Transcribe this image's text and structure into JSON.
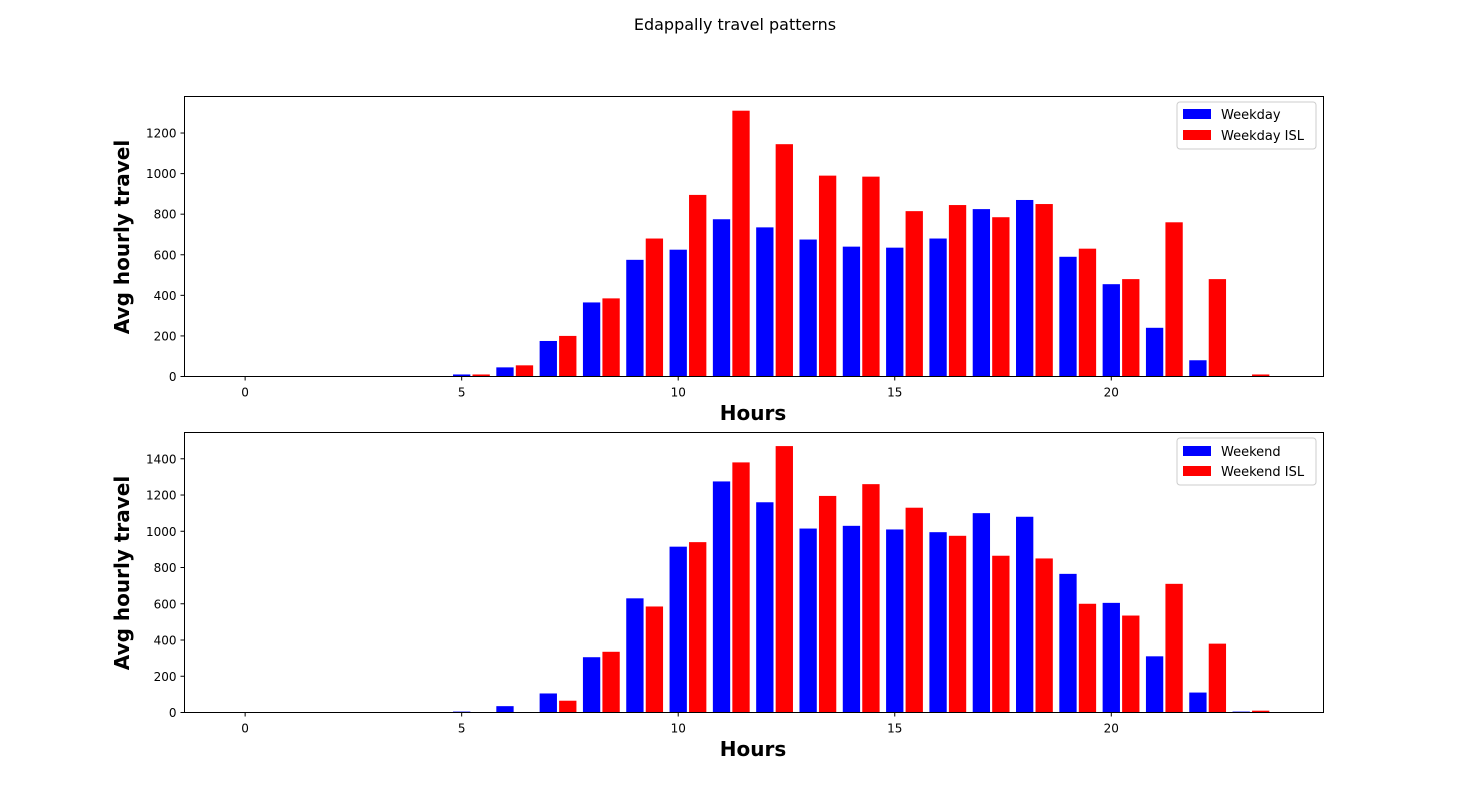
{
  "figure": {
    "title": "Edappally travel patterns"
  },
  "chart_data": [
    {
      "type": "bar",
      "xlabel": "Hours",
      "ylabel": "Avg hourly travel",
      "xlim": [
        -1.4,
        24.9
      ],
      "ylim": [
        0,
        1380
      ],
      "xticks": [
        0,
        5,
        10,
        15,
        20
      ],
      "yticks": [
        0,
        200,
        400,
        600,
        800,
        1000,
        1200
      ],
      "legend_position": "top-right",
      "x": [
        0,
        1,
        2,
        3,
        4,
        5,
        6,
        7,
        8,
        9,
        10,
        11,
        12,
        13,
        14,
        15,
        16,
        17,
        18,
        19,
        20,
        21,
        22,
        23
      ],
      "series": [
        {
          "name": "Weekday",
          "color": "#0000ff",
          "offset": 0,
          "values": [
            0,
            0,
            0,
            0,
            0,
            10,
            45,
            175,
            365,
            575,
            625,
            775,
            735,
            675,
            640,
            635,
            680,
            825,
            870,
            590,
            455,
            240,
            80,
            0
          ]
        },
        {
          "name": "Weekday ISL",
          "color": "#ff0000",
          "offset": 0.45,
          "values": [
            0,
            0,
            0,
            0,
            0,
            10,
            55,
            200,
            385,
            680,
            895,
            1310,
            1145,
            990,
            985,
            815,
            845,
            785,
            850,
            630,
            480,
            760,
            480,
            10
          ]
        }
      ]
    },
    {
      "type": "bar",
      "xlabel": "Hours",
      "ylabel": "Avg hourly travel",
      "xlim": [
        -1.4,
        24.9
      ],
      "ylim": [
        0,
        1545
      ],
      "xticks": [
        0,
        5,
        10,
        15,
        20
      ],
      "yticks": [
        0,
        200,
        400,
        600,
        800,
        1000,
        1200,
        1400
      ],
      "legend_position": "top-right",
      "x": [
        0,
        1,
        2,
        3,
        4,
        5,
        6,
        7,
        8,
        9,
        10,
        11,
        12,
        13,
        14,
        15,
        16,
        17,
        18,
        19,
        20,
        21,
        22,
        23
      ],
      "series": [
        {
          "name": "Weekend",
          "color": "#0000ff",
          "offset": 0,
          "values": [
            0,
            0,
            0,
            0,
            0,
            5,
            35,
            105,
            305,
            630,
            915,
            1275,
            1160,
            1015,
            1030,
            1010,
            995,
            1100,
            1080,
            765,
            605,
            310,
            110,
            5
          ]
        },
        {
          "name": "Weekend ISL",
          "color": "#ff0000",
          "offset": 0.45,
          "values": [
            0,
            0,
            0,
            0,
            0,
            0,
            0,
            65,
            335,
            585,
            940,
            1380,
            1470,
            1195,
            1260,
            1130,
            975,
            865,
            850,
            600,
            535,
            710,
            380,
            10
          ]
        }
      ]
    }
  ]
}
